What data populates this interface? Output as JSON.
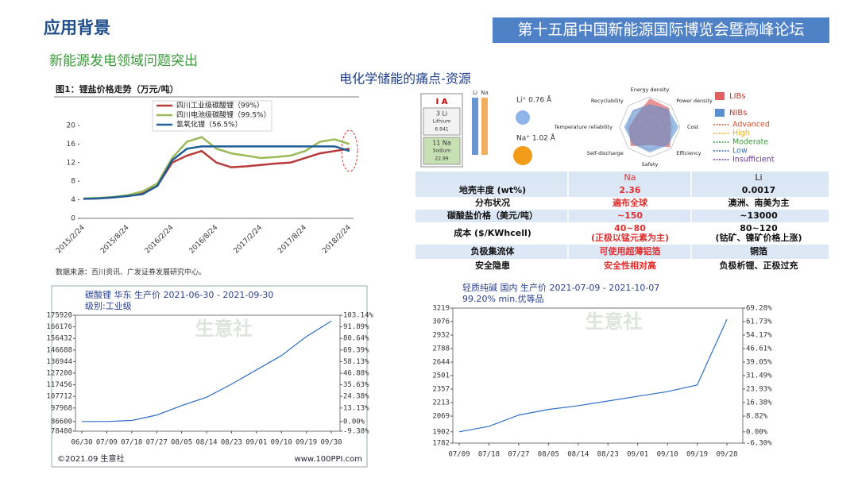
{
  "header": {
    "title": "应用背景",
    "event": "第十五届中国新能源国际博览会暨高峰论坛"
  },
  "subtitle": "新能源发电领域问题突出",
  "section_title": "电化学储能的痛点-资源",
  "elements": {
    "group": "I A",
    "cards": [
      [
        "3 Li",
        "Lithium",
        "6.941"
      ],
      [
        "11 Na",
        "Sodium",
        "22.99"
      ]
    ],
    "bars": [
      "Li",
      "Na"
    ],
    "ions": [
      "Li⁺ 0.76 Å",
      "Na⁺ 1.02 Å"
    ]
  },
  "radar": {
    "axes": [
      "Energy density",
      "Power density",
      "Cost",
      "Efficiency",
      "Safety",
      "Self-discharge",
      "Temperature reliability",
      "Recyclability"
    ],
    "legend": [
      "LIBs",
      "NIBs"
    ],
    "levels": [
      "Advanced",
      "High",
      "Moderate",
      "Low",
      "Insufficient"
    ]
  },
  "table": {
    "columns": [
      "Na",
      "Li"
    ],
    "rows": [
      [
        "地壳丰度 (wt%)",
        "2.36",
        "0.0017"
      ],
      [
        "分布状况",
        "遍布全球",
        "澳洲、南美为主"
      ],
      [
        "碳酸盐价格（美元/吨）",
        "~150",
        "~13000"
      ],
      [
        "成本 ($/KWhcell)",
        [
          "40~80",
          "(正极以锰元素为主)"
        ],
        [
          "80~120",
          "(钴矿、镍矿价格上涨)"
        ]
      ],
      [
        "负极集流体",
        "可使用超薄铝箔",
        "铜箔"
      ],
      [
        "安全隐患",
        "安全性相对高",
        "负极析锂、正极过充"
      ]
    ]
  },
  "chart_data": [
    {
      "type": "line",
      "title": "图1：锂盐价格走势（万元/吨）",
      "source": "数据来源：百川资讯、广发证券发展研究中心。",
      "categories": [
        "2015/2/24",
        null,
        null,
        "2015/8/24",
        null,
        null,
        "2016/2/24",
        null,
        null,
        "2016/8/24",
        null,
        null,
        "2017/2/24",
        null,
        null,
        "2017/8/24",
        null,
        null,
        "2018/2/24"
      ],
      "series": [
        {
          "name": "四川工业级碳酸锂（99%）",
          "color": "#b8393a",
          "values": [
            4.2,
            4.3,
            4.5,
            4.8,
            5.5,
            7,
            12,
            13.5,
            14.5,
            12,
            11,
            11.2,
            11.5,
            11.8,
            12,
            13,
            14,
            14.5,
            15
          ]
        },
        {
          "name": "四川电池级碳酸锂（99.5%）",
          "color": "#9bbb59",
          "values": [
            4.3,
            4.4,
            4.6,
            5,
            5.8,
            7.5,
            13,
            16.5,
            17.5,
            15,
            14,
            13.5,
            13,
            13.2,
            13.5,
            14.5,
            16.5,
            17,
            16
          ]
        },
        {
          "name": "氢氧化锂（56.5%）",
          "color": "#1f5d95",
          "values": [
            4.2,
            4.3,
            4.5,
            4.8,
            5.2,
            7,
            12.5,
            15,
            15.5,
            15.5,
            15.5,
            15.5,
            15.5,
            15.5,
            15.5,
            15.5,
            15.5,
            15.5,
            14.5
          ]
        }
      ],
      "ylim": [
        0,
        20
      ],
      "yticks": [
        0,
        4,
        8,
        12,
        16,
        20
      ]
    },
    {
      "type": "line",
      "title": "碳酸锂 华东 生产价 2021-06-30 - 2021-09-30",
      "subtitle": "级别:工业级",
      "watermark": "生意社",
      "footer": [
        "©2021.09 生意社",
        "www.100PPI.com"
      ],
      "categories": [
        "06/30",
        "07/09",
        "07/18",
        "07/27",
        "08/05",
        "08/14",
        "08/23",
        "09/01",
        "09/10",
        "09/19",
        "09/30"
      ],
      "values": [
        86600,
        86600,
        87500,
        92000,
        100000,
        107000,
        118000,
        130000,
        142000,
        158000,
        171000
      ],
      "color": "#2f6fc9",
      "ylim": [
        78480,
        175920
      ],
      "yticks": [
        78480,
        86600,
        97968,
        107712,
        117456,
        127200,
        136944,
        146688,
        156432,
        166176,
        175920
      ],
      "y2lim": [
        -9.38,
        103.14
      ],
      "y2ticks": [
        {
          "value": -9.38,
          "label": "-9.38%"
        },
        {
          "value": 0,
          "label": "0.00%"
        },
        {
          "value": 13.13,
          "label": "13.13%"
        },
        {
          "value": 24.38,
          "label": "24.38%"
        },
        {
          "value": 35.63,
          "label": "35.63%"
        },
        {
          "value": 46.88,
          "label": "46.88%"
        },
        {
          "value": 58.13,
          "label": "58.13%"
        },
        {
          "value": 69.39,
          "label": "69.39%"
        },
        {
          "value": 80.64,
          "label": "80.64%"
        },
        {
          "value": 91.89,
          "label": "91.89%"
        },
        {
          "value": 103.14,
          "label": "103.14%"
        }
      ]
    },
    {
      "type": "line",
      "title": "轻质纯碱 国内 生产价 2021-07-09 - 2021-10-07",
      "subtitle": "99.20% min.优等品",
      "watermark": "生意社",
      "categories": [
        "07/09",
        "07/18",
        "07/27",
        "08/05",
        "08/14",
        "08/23",
        "09/01",
        "09/10",
        "09/19",
        "09/28"
      ],
      "values": [
        1902,
        1960,
        2080,
        2140,
        2180,
        2230,
        2280,
        2330,
        2400,
        3100
      ],
      "color": "#2f6fc9",
      "ylim": [
        1782,
        3219
      ],
      "yticks": [
        1782,
        1902,
        2069,
        2213,
        2357,
        2501,
        2644,
        2788,
        2932,
        3076,
        3219
      ],
      "y2lim": [
        -6.3,
        69.28
      ],
      "y2ticks": [
        {
          "value": -6.3,
          "label": "-6.30%"
        },
        {
          "value": 0,
          "label": "0.00%"
        },
        {
          "value": 8.82,
          "label": "8.82%"
        },
        {
          "value": 16.38,
          "label": "16.38%"
        },
        {
          "value": 23.93,
          "label": "23.93%"
        },
        {
          "value": 31.49,
          "label": "31.49%"
        },
        {
          "value": 39.05,
          "label": "39.05%"
        },
        {
          "value": 46.61,
          "label": "46.61%"
        },
        {
          "value": 54.17,
          "label": "54.17%"
        },
        {
          "value": 61.73,
          "label": "61.73%"
        },
        {
          "value": 69.28,
          "label": "69.28%"
        }
      ]
    }
  ]
}
